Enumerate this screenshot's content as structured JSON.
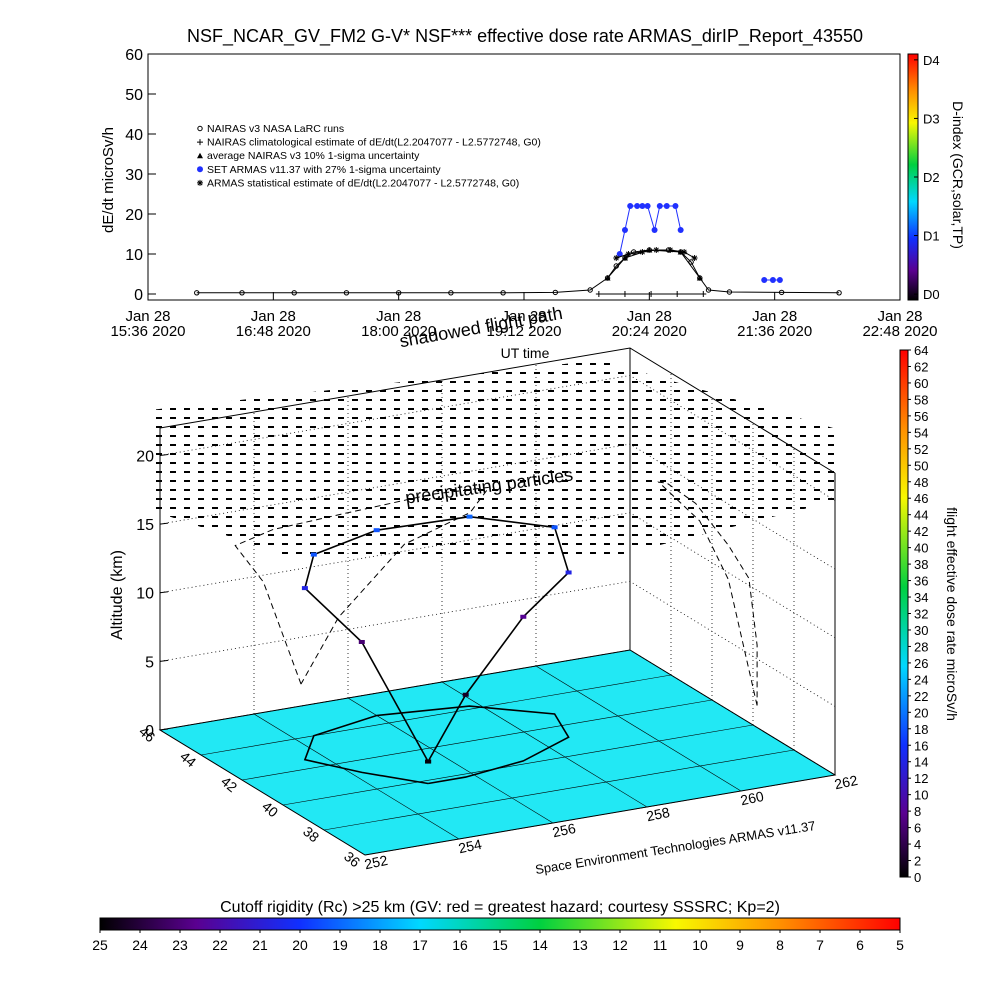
{
  "chart_data": [
    {
      "type": "line",
      "title": "NSF_NCAR_GV_FM2 G-V* NSF*** effective dose rate ARMAS_dirIP_Report_43550",
      "ylabel": "dE/dt microSv/h",
      "xlabel": "UT time",
      "xlim": [
        "2020-01-28 15:36",
        "2020-01-28 22:48"
      ],
      "xticks": [
        {
          "value": "2020-01-28 15:36",
          "label": [
            "Jan 28",
            "15:36 2020"
          ]
        },
        {
          "value": "2020-01-28 16:48",
          "label": [
            "Jan 28",
            "16:48 2020"
          ]
        },
        {
          "value": "2020-01-28 18:00",
          "label": [
            "Jan 28",
            "18:00 2020"
          ]
        },
        {
          "value": "2020-01-28 19:12",
          "label": [
            "Jan 28",
            "19:12 2020"
          ]
        },
        {
          "value": "2020-01-28 20:24",
          "label": [
            "Jan 28",
            "20:24 2020"
          ]
        },
        {
          "value": "2020-01-28 21:36",
          "label": [
            "Jan 28",
            "21:36 2020"
          ]
        },
        {
          "value": "2020-01-28 22:48",
          "label": [
            "Jan 28",
            "22:48 2020"
          ]
        }
      ],
      "ylim": [
        -1.5,
        60
      ],
      "yticks": [
        0,
        10,
        20,
        30,
        40,
        50,
        60
      ],
      "y2label": "D-index (GCR,solar,TP)",
      "y2lim": [
        -0.1,
        4.1
      ],
      "y2ticks": [
        {
          "value": 0,
          "label": "D0"
        },
        {
          "value": 1,
          "label": "D1"
        },
        {
          "value": 2,
          "label": "D2"
        },
        {
          "value": 3,
          "label": "D3"
        },
        {
          "value": 4,
          "label": "D4"
        }
      ],
      "legend": "upper left",
      "series": [
        {
          "name": "NAIRAS v3 NASA LaRC runs",
          "color": "#000000",
          "marker": "circle",
          "x": [
            "2020-01-28 16:04",
            "2020-01-28 16:30",
            "2020-01-28 17:00",
            "2020-01-28 17:30",
            "2020-01-28 18:00",
            "2020-01-28 18:30",
            "2020-01-28 19:00",
            "2020-01-28 19:30",
            "2020-01-28 19:50",
            "2020-01-28 20:00",
            "2020-01-28 20:05",
            "2020-01-28 20:10",
            "2020-01-28 20:15",
            "2020-01-28 20:24",
            "2020-01-28 20:35",
            "2020-01-28 20:42",
            "2020-01-28 20:48",
            "2020-01-28 20:53",
            "2020-01-28 20:58",
            "2020-01-28 21:10",
            "2020-01-28 21:40",
            "2020-01-28 22:13"
          ],
          "values": [
            0.3,
            0.3,
            0.3,
            0.3,
            0.3,
            0.3,
            0.3,
            0.4,
            1,
            4,
            7,
            9,
            10.5,
            11,
            11,
            10.5,
            8,
            4,
            1,
            0.5,
            0.4,
            0.3
          ]
        },
        {
          "name": "NAIRAS climatological estimate of dE/dt(L2.2047077 - L2.5772748, G0)",
          "color": "#000000",
          "marker": "plus",
          "x": [
            "2020-01-28 19:55",
            "2020-01-28 20:10",
            "2020-01-28 20:25",
            "2020-01-28 20:40",
            "2020-01-28 20:55"
          ],
          "values": [
            0,
            0,
            0,
            0,
            0
          ]
        },
        {
          "name": "average NAIRAS v3 10% 1-sigma uncertainty",
          "color": "#000000",
          "marker": "triangle",
          "x": [
            "2020-01-28 20:00",
            "2020-01-28 20:10",
            "2020-01-28 20:24",
            "2020-01-28 20:42",
            "2020-01-28 20:53"
          ],
          "values": [
            4,
            9,
            11,
            10.5,
            4
          ]
        },
        {
          "name": "SET ARMAS v11.37 with 27% 1-sigma uncertainty",
          "color": "#2030ff",
          "marker": "dot",
          "x": [
            "2020-01-28 20:07",
            "2020-01-28 20:10",
            "2020-01-28 20:13",
            "2020-01-28 20:17",
            "2020-01-28 20:20",
            "2020-01-28 20:23",
            "2020-01-28 20:27",
            "2020-01-28 20:30",
            "2020-01-28 20:34",
            "2020-01-28 20:39",
            "2020-01-28 20:42",
            "2020-01-28 21:00",
            "2020-01-28 21:30",
            "2020-01-28 21:35",
            "2020-01-28 21:39"
          ],
          "values": [
            10,
            16,
            22,
            22,
            22,
            22,
            16,
            22,
            22,
            22,
            16,
            null,
            3.5,
            3.5,
            3.5
          ]
        },
        {
          "name": "ARMAS statistical estimate of dE/dt(L2.2047077 - L2.5772748, G0)",
          "color": "#000000",
          "marker": "asterisk",
          "x": [
            "2020-01-28 20:05",
            "2020-01-28 20:12",
            "2020-01-28 20:20",
            "2020-01-28 20:28",
            "2020-01-28 20:36",
            "2020-01-28 20:44",
            "2020-01-28 20:50"
          ],
          "values": [
            9,
            10,
            10.5,
            11,
            11,
            10.5,
            9
          ]
        }
      ]
    },
    {
      "type": "surface3d",
      "title": "shadowed flight path",
      "annotation": "precipitating particles",
      "zlabel": "Altitude (km)",
      "credit": "Space Environment Technologies ARMAS v11.37",
      "xlim": [
        252,
        262
      ],
      "xticks": [
        252,
        254,
        256,
        258,
        260,
        262
      ],
      "ylim": [
        36,
        46
      ],
      "yticks": [
        36,
        38,
        40,
        42,
        44,
        46
      ],
      "zlim": [
        0,
        22
      ],
      "zticks": [
        0,
        5,
        10,
        15,
        20
      ],
      "x": [
        255.0,
        254.2,
        253.6,
        254.4,
        256.0,
        257.8,
        259.0,
        258.6,
        257.2,
        255.8,
        255.0
      ],
      "y": [
        39.8,
        41.2,
        42.6,
        44.0,
        44.6,
        44.2,
        42.8,
        41.2,
        40.2,
        39.8,
        39.8
      ],
      "z": [
        1.6,
        9.5,
        12.5,
        13.2,
        13.5,
        13.8,
        13.6,
        12.0,
        10.5,
        6.0,
        1.6
      ],
      "dose": [
        0.5,
        6,
        14,
        18,
        18,
        19,
        18,
        14,
        8,
        2,
        0.5
      ]
    },
    {
      "type": "colorbar",
      "orientation": "vertical",
      "label": "flight effective dose rate microSv/h",
      "lim": [
        0,
        64
      ],
      "ticks": [
        0,
        2,
        4,
        6,
        8,
        10,
        12,
        14,
        16,
        18,
        20,
        22,
        24,
        26,
        28,
        30,
        32,
        34,
        36,
        38,
        40,
        42,
        44,
        46,
        48,
        50,
        52,
        54,
        56,
        58,
        60,
        62,
        64
      ]
    },
    {
      "type": "colorbar",
      "orientation": "horizontal",
      "label": "Cutoff rigidity (Rc) >25 km (GV: red = greatest hazard; courtesy SSSRC; Kp=2)",
      "lim": [
        25,
        5
      ],
      "ticks": [
        25,
        24,
        23,
        22,
        21,
        20,
        19,
        18,
        17,
        16,
        15,
        14,
        13,
        12,
        11,
        10,
        9,
        8,
        7,
        6,
        5
      ]
    }
  ]
}
